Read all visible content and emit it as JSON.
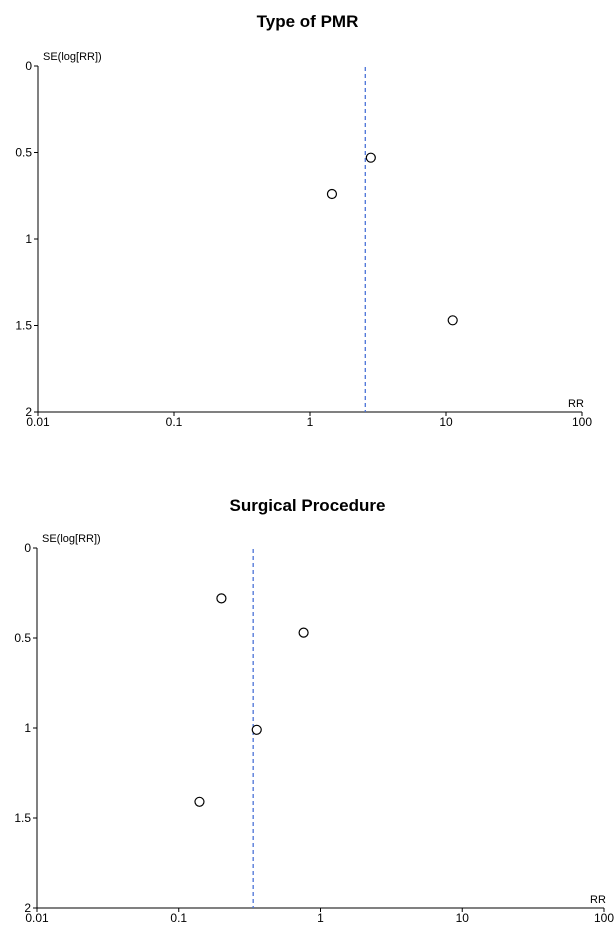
{
  "chart_data": [
    {
      "type": "scatter",
      "title": "Type of PMR",
      "xlabel": "RR",
      "ylabel": "SE(log[RR])",
      "xscale": "log",
      "xlim": [
        0.01,
        100
      ],
      "ylim": [
        0,
        2
      ],
      "y_inverted": true,
      "xticks": [
        "0.01",
        "0.1",
        "1",
        "10",
        "100"
      ],
      "yticks": [
        "0",
        "0.5",
        "1",
        "1.5",
        "2"
      ],
      "reference_line": {
        "x": 2.55,
        "style": "dashed",
        "color": "#4a72d8"
      },
      "points": [
        {
          "x": 2.8,
          "y": 0.53
        },
        {
          "x": 1.45,
          "y": 0.74
        },
        {
          "x": 11.2,
          "y": 1.47
        }
      ],
      "grid": false
    },
    {
      "type": "scatter",
      "title": "Surgical Procedure",
      "xlabel": "RR",
      "ylabel": "SE(log[RR])",
      "xscale": "log",
      "xlim": [
        0.01,
        100
      ],
      "ylim": [
        0,
        2
      ],
      "y_inverted": true,
      "xticks": [
        "0.01",
        "0.1",
        "1",
        "10",
        "100"
      ],
      "yticks": [
        "0",
        "0.5",
        "1",
        "1.5",
        "2"
      ],
      "reference_line": {
        "x": 0.335,
        "style": "dashed",
        "color": "#4a72d8"
      },
      "points": [
        {
          "x": 0.2,
          "y": 0.28
        },
        {
          "x": 0.76,
          "y": 0.47
        },
        {
          "x": 0.355,
          "y": 1.01
        },
        {
          "x": 0.14,
          "y": 1.41
        }
      ],
      "grid": false
    }
  ]
}
